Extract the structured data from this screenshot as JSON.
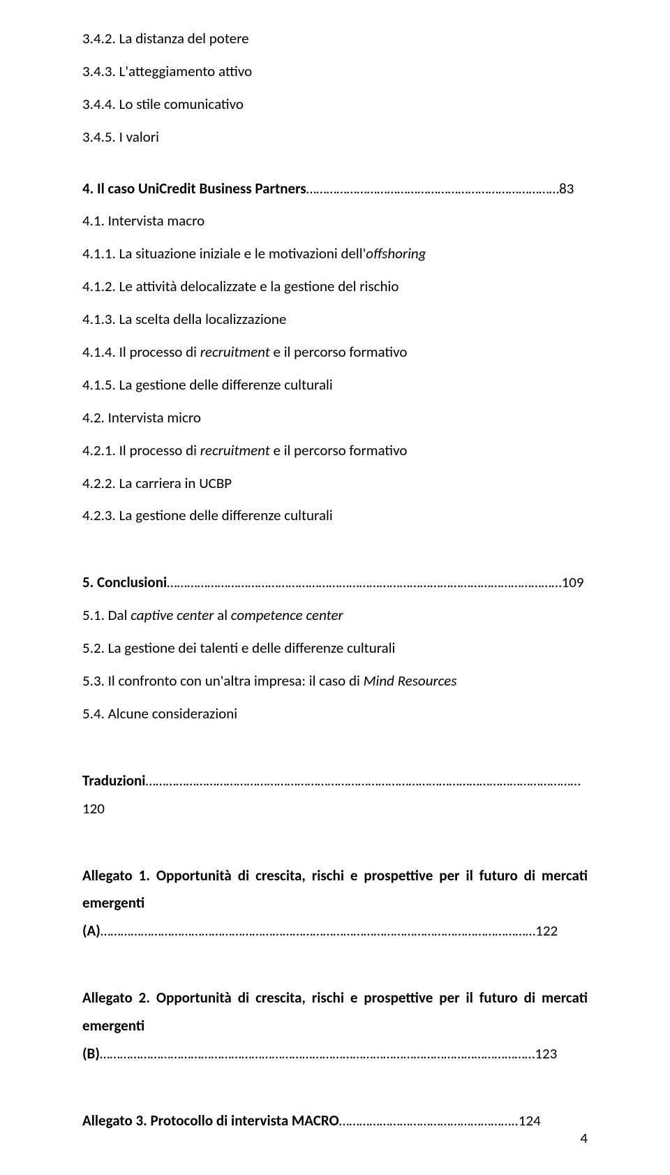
{
  "entries": {
    "e1": "3.4.2. La distanza del potere",
    "e2": "3.4.3. L'atteggiamento attivo",
    "e3": "3.4.4. Lo stile comunicativo",
    "e4": "3.4.5. I valori",
    "e5a": "4.     Il caso UniCredit Business Partners",
    "e5b": "…………………………………………………………………83",
    "e6": "4.1.   Intervista macro",
    "e7a": "4.1.1. La situazione iniziale e le motivazioni dell'",
    "e7b": "offshoring",
    "e8": "4.1.2. Le attività delocalizzate e la gestione del rischio",
    "e9": "4.1.3. La scelta della localizzazione",
    "e10a": "4.1.4. Il processo di ",
    "e10b": "recruitment",
    "e10c": " e il percorso formativo",
    "e11": "4.1.5. La gestione delle differenze culturali",
    "e12": "4.2.   Intervista micro",
    "e13a": "4.2.1. Il processo di ",
    "e13b": "recruitment",
    "e13c": " e il percorso formativo",
    "e14": "4.2.2. La carriera in UCBP",
    "e15": "4.2.3. La gestione delle differenze culturali",
    "e16a": "5.     Conclusioni",
    "e16b": "………………………………………………………………………………………………………109",
    "e17a": "5.1. Dal ",
    "e17b": "captive center",
    "e17c": " al ",
    "e17d": "competence center",
    "e18": "5.2. La gestione dei talenti e delle differenze culturali",
    "e19a": "5.3. Il confronto con un'altra impresa: il caso di ",
    "e19b": "Mind Resources",
    "e20": "5.4. Alcune considerazioni",
    "e21a": "Traduzioni",
    "e21b": "…………………………………………………………………………………………………………………120",
    "e22a": "Allegato 1. Opportunità di crescita, rischi e prospettive per il futuro di mercati emergenti (A)",
    "e22b": "…………………………………………………………………………………………………………………122",
    "e23a": "Allegato 2. Opportunità di crescita, rischi e prospettive per il futuro di mercati emergenti (B)",
    "e23b": "…………………………………………………………………………………………………………………123",
    "e24a": "Allegato 3. Protocollo di intervista MACRO",
    "e24b": "……………………………………………..124"
  },
  "pageNumber": "4"
}
